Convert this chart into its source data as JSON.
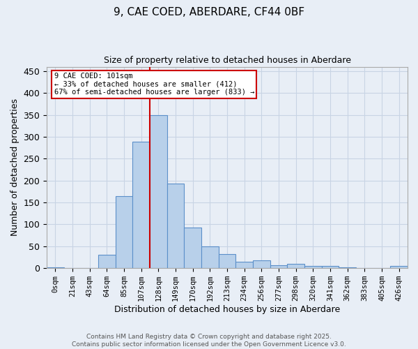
{
  "title_line1": "9, CAE COED, ABERDARE, CF44 0BF",
  "title_line2": "Size of property relative to detached houses in Aberdare",
  "xlabel": "Distribution of detached houses by size in Aberdare",
  "ylabel": "Number of detached properties",
  "categories": [
    "0sqm",
    "21sqm",
    "43sqm",
    "64sqm",
    "85sqm",
    "107sqm",
    "128sqm",
    "149sqm",
    "170sqm",
    "192sqm",
    "213sqm",
    "234sqm",
    "256sqm",
    "277sqm",
    "298sqm",
    "320sqm",
    "341sqm",
    "362sqm",
    "383sqm",
    "405sqm",
    "426sqm"
  ],
  "values": [
    2,
    0,
    0,
    30,
    165,
    288,
    350,
    193,
    93,
    50,
    32,
    14,
    18,
    7,
    10,
    5,
    5,
    2,
    1,
    1,
    5
  ],
  "bar_color": "#b8d0ea",
  "bar_edge_color": "#5b8fc9",
  "grid_color": "#c8d4e4",
  "background_color": "#e8eef6",
  "vline_x": 5.5,
  "vline_color": "#cc0000",
  "annotation_text": "9 CAE COED: 101sqm\n← 33% of detached houses are smaller (412)\n67% of semi-detached houses are larger (833) →",
  "annotation_box_color": "#ffffff",
  "annotation_box_edge": "#cc0000",
  "ylim": [
    0,
    460
  ],
  "yticks": [
    0,
    50,
    100,
    150,
    200,
    250,
    300,
    350,
    400,
    450
  ],
  "footnote_line1": "Contains HM Land Registry data © Crown copyright and database right 2025.",
  "footnote_line2": "Contains public sector information licensed under the Open Government Licence v3.0."
}
